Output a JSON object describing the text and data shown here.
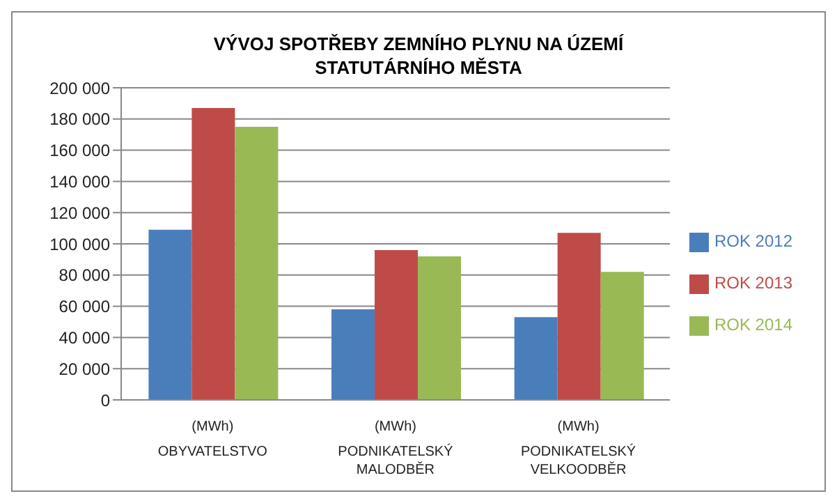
{
  "chart_data": {
    "type": "bar",
    "title": "VÝVOJ SPOTŘEBY ZEMNÍHO PLYNU NA ÚZEMÍ STATUTÁRNÍHO MĚSTA",
    "categories": [
      "(MWh)\nOBYVATELSTVO",
      "(MWh)\nPODNIKATELSKÝ MALODBĚR",
      "(MWh)\nPODNIKATELSKÝ VELKOODBĚR"
    ],
    "series": [
      {
        "name": "ROK 2012",
        "color": "#4a7ebb",
        "values": [
          109000,
          58000,
          53000
        ]
      },
      {
        "name": "ROK 2013",
        "color": "#be4b48",
        "values": [
          187000,
          96000,
          107000
        ]
      },
      {
        "name": "ROK 2014",
        "color": "#98b954",
        "values": [
          175000,
          92000,
          82000
        ]
      }
    ],
    "ylim": [
      0,
      200000
    ],
    "yticks": [
      0,
      20000,
      40000,
      60000,
      80000,
      100000,
      120000,
      140000,
      160000,
      180000,
      200000
    ],
    "grid": "y",
    "legend": "right"
  }
}
